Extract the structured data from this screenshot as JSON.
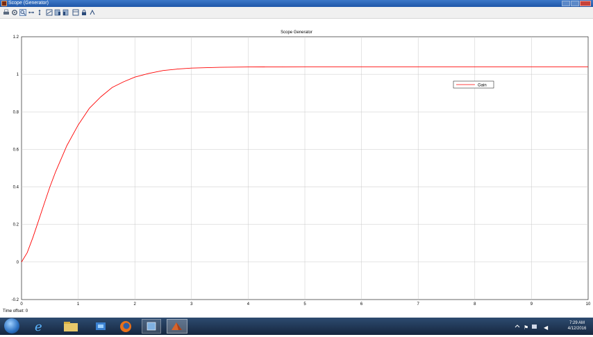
{
  "window": {
    "title": "Scope (Generator)"
  },
  "plot": {
    "title": "Scope Generator",
    "legend_entry": "Gain",
    "time_offset_label": "Time offset:",
    "time_offset_value": "0"
  },
  "chart_data": {
    "type": "line",
    "title": "Scope Generator",
    "xlabel": "",
    "ylabel": "",
    "xlim": [
      0,
      10
    ],
    "ylim": [
      -0.2,
      1.2
    ],
    "x_ticks": [
      0,
      1,
      2,
      3,
      4,
      5,
      6,
      7,
      8,
      9,
      10
    ],
    "y_ticks": [
      -0.2,
      0,
      0.2,
      0.4,
      0.6,
      0.8,
      1,
      1.2
    ],
    "y_tick_labels": [
      "-0.2",
      "0",
      "0.2",
      "0.4",
      "0.6",
      "0.8",
      "1",
      "1.2"
    ],
    "grid": true,
    "legend_position": "top-right",
    "background": "#ffffff",
    "series": [
      {
        "name": "Gain",
        "color": "#ff0000",
        "x": [
          0,
          0.1,
          0.2,
          0.3,
          0.4,
          0.5,
          0.6,
          0.8,
          1.0,
          1.2,
          1.4,
          1.6,
          1.8,
          2.0,
          2.25,
          2.5,
          2.75,
          3.0,
          3.5,
          4.0,
          5.0,
          6.0,
          7.0,
          8.0,
          9.0,
          10.0
        ],
        "y": [
          0.0,
          0.05,
          0.13,
          0.22,
          0.31,
          0.4,
          0.48,
          0.62,
          0.73,
          0.82,
          0.88,
          0.93,
          0.96,
          0.985,
          1.005,
          1.02,
          1.028,
          1.033,
          1.037,
          1.039,
          1.04,
          1.04,
          1.04,
          1.04,
          1.04,
          1.04
        ]
      }
    ]
  },
  "taskbar": {
    "clock_time": "7:29 AM",
    "clock_date": "4/12/2016"
  },
  "colors": {
    "taskbar_bg": "#1f3552",
    "titlebar_bg": "#2a64b8",
    "line": "#ff0000",
    "grid": "#c8c8c8"
  }
}
